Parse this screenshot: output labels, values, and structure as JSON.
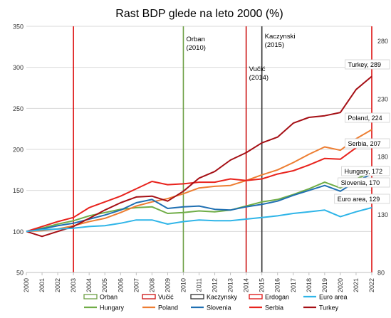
{
  "chart_data": {
    "type": "line",
    "title": "Rast BDP glede na leto 2000 (%)",
    "xlabel": "",
    "ylabel": "",
    "x": [
      "2000",
      "2001",
      "2002",
      "2003",
      "2004",
      "2005",
      "2006",
      "2007",
      "2008",
      "2009",
      "2010",
      "2011",
      "2012",
      "2013",
      "2014",
      "2015",
      "2016",
      "2017",
      "2018",
      "2019",
      "2020",
      "2021",
      "2022"
    ],
    "ylim": [
      50,
      350
    ],
    "yticks": [
      "50",
      "100",
      "150",
      "200",
      "250",
      "300",
      "350"
    ],
    "y2ticks": [
      "80",
      "130",
      "180",
      "230",
      "280"
    ],
    "grid": true,
    "legend_position": "bottom",
    "vlines": [
      {
        "name": "Orban",
        "year": 2003,
        "color": "#dd1111",
        "label": ""
      },
      {
        "name": "Orban",
        "year": 2010,
        "color": "#6ea046",
        "label": "Orban (2010)"
      },
      {
        "name": "Vučić",
        "year": 2014,
        "color": "#cc1111",
        "label": "Vučić (2014)"
      },
      {
        "name": "Kaczynsky",
        "year": 2015,
        "color": "#333333",
        "label": "Kaczynski (2015)"
      },
      {
        "name": "Erdogan",
        "year": 2022,
        "color": "#dd1111",
        "label": ""
      }
    ],
    "series": [
      {
        "name": "Hungary",
        "color": "#70ad47",
        "end_label": "Hungary, 172",
        "values": [
          100,
          104,
          109,
          113,
          119,
          123,
          127,
          129,
          130,
          122,
          123,
          125,
          124,
          126,
          131,
          136,
          139,
          145,
          152,
          160,
          153,
          164,
          172
        ]
      },
      {
        "name": "Poland",
        "color": "#ed7d31",
        "end_label": "Poland, 224",
        "values": [
          100,
          101,
          103,
          107,
          112,
          116,
          123,
          131,
          136,
          140,
          146,
          153,
          155,
          156,
          162,
          169,
          175,
          184,
          194,
          203,
          199,
          213,
          224
        ]
      },
      {
        "name": "Slovenia",
        "color": "#1f6fb2",
        "end_label": "Slovenia, 170",
        "values": [
          100,
          103,
          107,
          110,
          115,
          120,
          126,
          135,
          139,
          128,
          130,
          131,
          127,
          126,
          130,
          133,
          137,
          144,
          150,
          156,
          149,
          161,
          170
        ]
      },
      {
        "name": "Serbia",
        "color": "#e8231d",
        "end_label": "Serbia, 207",
        "values": [
          100,
          106,
          112,
          117,
          129,
          136,
          143,
          152,
          161,
          157,
          158,
          160,
          160,
          164,
          162,
          164,
          170,
          174,
          181,
          189,
          188,
          202,
          207
        ]
      },
      {
        "name": "Turkey",
        "color": "#a50f15",
        "end_label": "Turkey, 289",
        "values": [
          100,
          94,
          100,
          106,
          116,
          126,
          135,
          142,
          143,
          137,
          149,
          165,
          173,
          187,
          196,
          208,
          215,
          232,
          239,
          241,
          245,
          273,
          289
        ]
      },
      {
        "name": "Euro area",
        "color": "#2fb5e8",
        "end_label": "Euro area, 129",
        "values": [
          100,
          102,
          103,
          104,
          106,
          107,
          110,
          114,
          114,
          109,
          112,
          114,
          113,
          113,
          115,
          117,
          119,
          122,
          124,
          126,
          118,
          124,
          129
        ]
      }
    ],
    "legend_rows": [
      [
        {
          "name": "Orban",
          "kind": "line",
          "color": "#6ea046"
        },
        {
          "name": "Vučić",
          "kind": "line",
          "color": "#cc1111"
        },
        {
          "name": "Kaczynsky",
          "kind": "line",
          "color": "#333333"
        },
        {
          "name": "Erdogan",
          "kind": "line",
          "color": "#dd1111"
        },
        {
          "name": "Euro area",
          "kind": "line",
          "color": "#2fb5e8"
        }
      ],
      [
        {
          "name": "Hungary",
          "kind": "line",
          "color": "#70ad47"
        },
        {
          "name": "Poland",
          "kind": "line",
          "color": "#ed7d31"
        },
        {
          "name": "Slovenia",
          "kind": "line",
          "color": "#1f6fb2"
        },
        {
          "name": "Serbia",
          "kind": "line",
          "color": "#e8231d"
        },
        {
          "name": "Turkey",
          "kind": "line",
          "color": "#a50f15"
        }
      ]
    ]
  }
}
